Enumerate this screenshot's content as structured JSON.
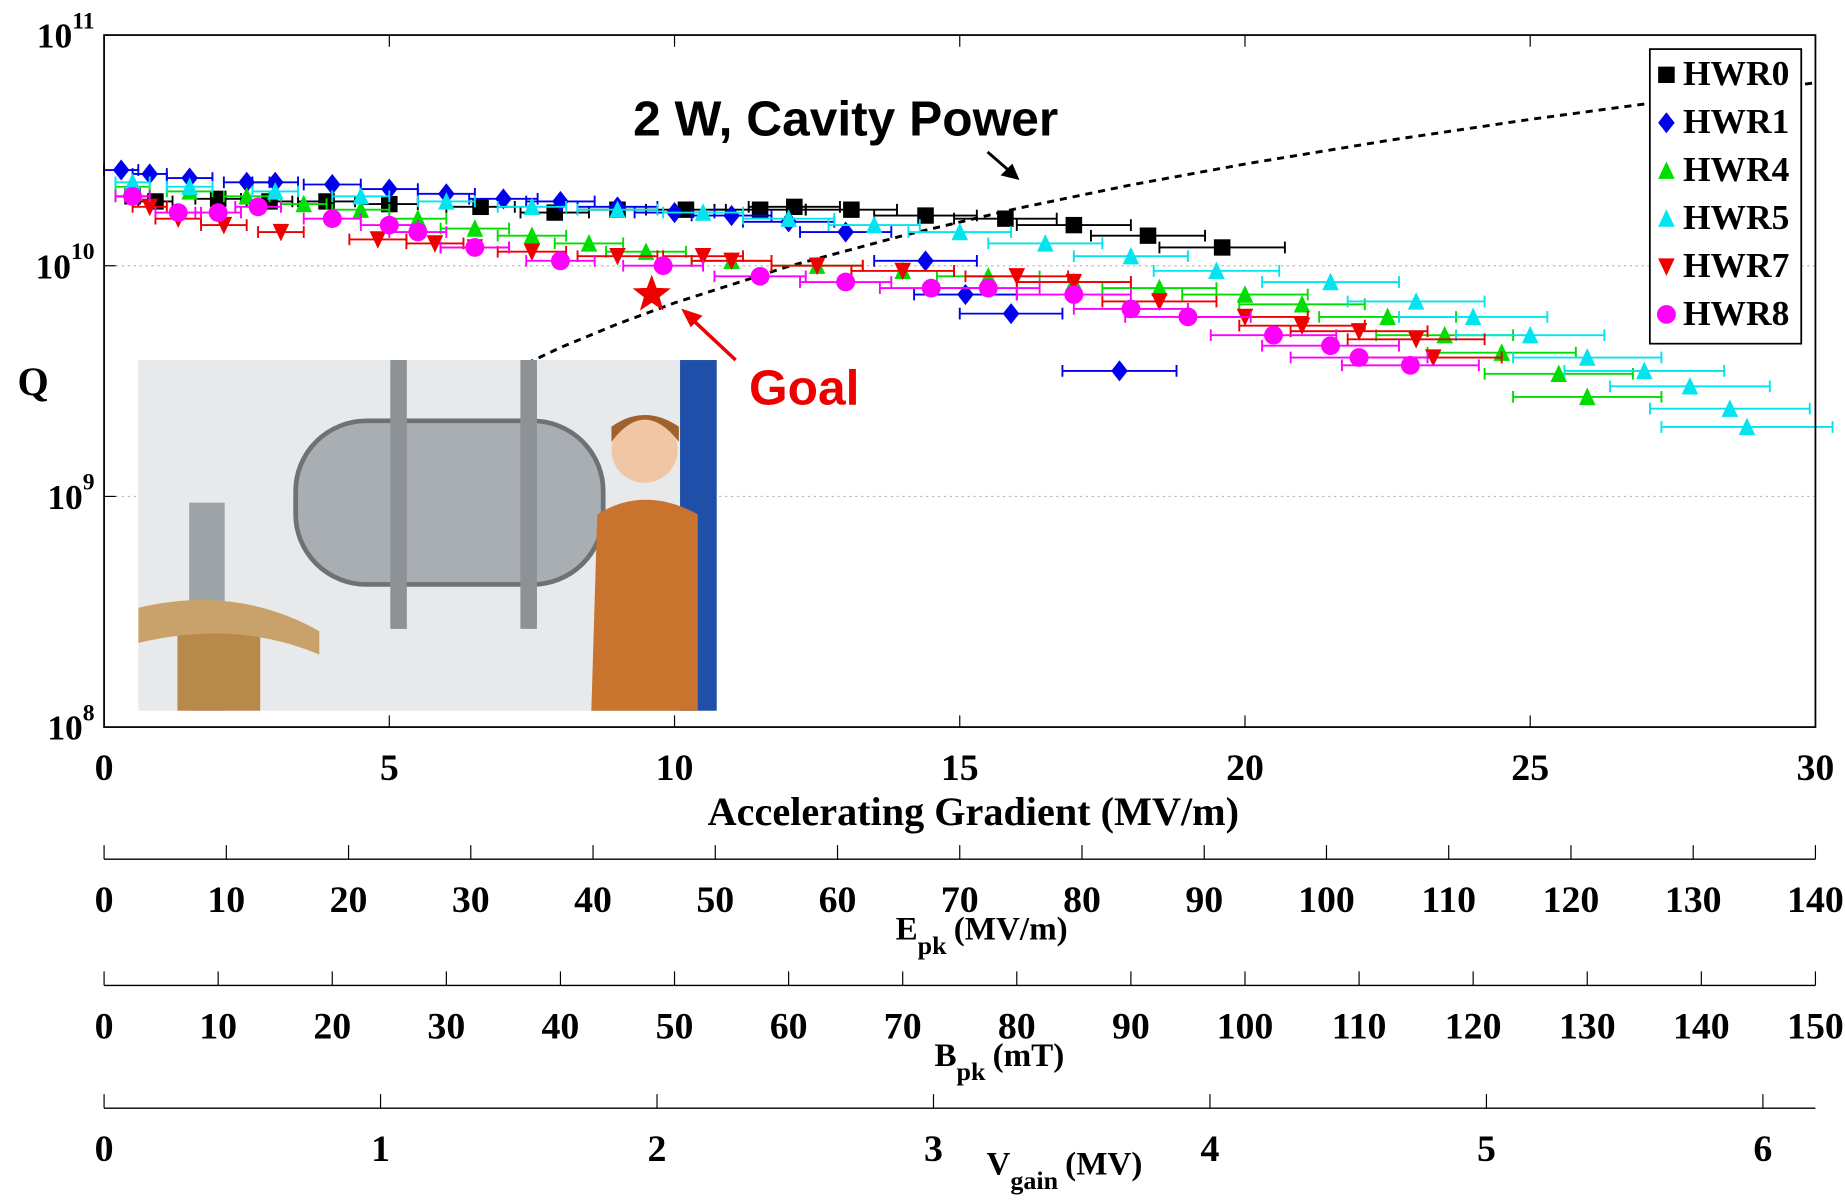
{
  "chart_data": {
    "type": "scatter",
    "y_label": "Q",
    "x_label": "Accelerating Gradient (MV/m)",
    "log_y": true,
    "grid": true,
    "legend": "upper right",
    "xlim": [
      0,
      30
    ],
    "xticks": [
      0,
      5,
      10,
      15,
      20,
      25,
      30
    ],
    "ylim": [
      100000000.0,
      100000000000.0
    ],
    "yticks": [
      {
        "value": 100000000.0,
        "label": "10",
        "exponent": "8"
      },
      {
        "value": 1000000000.0,
        "label": "10",
        "exponent": "9"
      },
      {
        "value": 10000000000.0,
        "label": "10",
        "exponent": "10"
      },
      {
        "value": 100000000000.0,
        "label": "10",
        "exponent": "11"
      }
    ],
    "series": [
      {
        "name": "HWR0",
        "color": "#000000",
        "marker": "square",
        "x": [
          0.5,
          0.9,
          2.0,
          2.9,
          3.9,
          5.0,
          6.6,
          7.9,
          9.0,
          10.2,
          11.5,
          12.1,
          13.1,
          14.4,
          15.8,
          17.0,
          18.3,
          19.6
        ],
        "xerr": [
          0.3,
          0.3,
          0.4,
          0.4,
          0.5,
          0.5,
          0.6,
          0.6,
          0.7,
          0.7,
          0.8,
          0.8,
          0.8,
          0.9,
          0.9,
          1.0,
          1.0,
          1.1
        ],
        "values": [
          20000000000.0,
          19000000000.0,
          19500000000.0,
          19000000000.0,
          19000000000.0,
          18500000000.0,
          18000000000.0,
          17000000000.0,
          17500000000.0,
          17500000000.0,
          17500000000.0,
          18000000000.0,
          17500000000.0,
          16500000000.0,
          16000000000.0,
          15000000000.0,
          13500000000.0,
          12000000000.0
        ]
      },
      {
        "name": "HWR1",
        "color": "#0000ee",
        "marker": "diamond",
        "x": [
          0.3,
          0.8,
          1.5,
          2.5,
          3.0,
          4.0,
          5.0,
          6.0,
          7.0,
          8.0,
          9.0,
          10.0,
          11.0,
          12.0,
          13.0,
          14.4,
          15.1,
          15.9,
          17.8
        ],
        "xerr": [
          0.3,
          0.3,
          0.4,
          0.4,
          0.4,
          0.5,
          0.5,
          0.5,
          0.6,
          0.6,
          0.7,
          0.7,
          0.7,
          0.8,
          0.8,
          0.9,
          0.9,
          0.9,
          1.0
        ],
        "values": [
          26000000000.0,
          25000000000.0,
          24000000000.0,
          23000000000.0,
          23000000000.0,
          22500000000.0,
          21500000000.0,
          20500000000.0,
          19500000000.0,
          19000000000.0,
          18000000000.0,
          17000000000.0,
          16500000000.0,
          15500000000.0,
          14000000000.0,
          10500000000.0,
          7500000000.0,
          6200000000.0,
          3500000000.0
        ]
      },
      {
        "name": "HWR4",
        "color": "#00dd00",
        "marker": "triangle-up",
        "x": [
          0.5,
          1.5,
          2.5,
          3.5,
          4.5,
          5.5,
          6.5,
          7.5,
          8.5,
          9.5,
          11,
          12.5,
          14,
          15.5,
          17,
          18.5,
          20,
          21,
          22.5,
          23.5,
          24.5,
          25.5,
          26
        ],
        "xerr": [
          0.3,
          0.4,
          0.4,
          0.4,
          0.5,
          0.5,
          0.6,
          0.6,
          0.6,
          0.7,
          0.7,
          0.8,
          0.9,
          0.9,
          1.0,
          1.0,
          1.1,
          1.1,
          1.2,
          1.2,
          1.3,
          1.3,
          1.3
        ],
        "values": [
          22000000000.0,
          21000000000.0,
          20000000000.0,
          18500000000.0,
          17500000000.0,
          16000000000.0,
          14500000000.0,
          13500000000.0,
          12500000000.0,
          11500000000.0,
          10500000000.0,
          10000000000.0,
          9500000000.0,
          9000000000.0,
          8500000000.0,
          8000000000.0,
          7500000000.0,
          6800000000.0,
          6000000000.0,
          5000000000.0,
          4200000000.0,
          3400000000.0,
          2700000000.0
        ]
      },
      {
        "name": "HWR5",
        "color": "#00e5ee",
        "marker": "triangle-up",
        "x": [
          0.5,
          1.5,
          3,
          4.5,
          6,
          7.5,
          9,
          10.5,
          12,
          13.5,
          15,
          16.5,
          18,
          19.5,
          21.5,
          23,
          24,
          25,
          26,
          27,
          27.8,
          28.5,
          28.8
        ],
        "xerr": [
          0.3,
          0.4,
          0.4,
          0.5,
          0.5,
          0.6,
          0.7,
          0.7,
          0.8,
          0.8,
          0.9,
          1.0,
          1.0,
          1.1,
          1.2,
          1.2,
          1.3,
          1.3,
          1.3,
          1.4,
          1.4,
          1.4,
          1.5
        ],
        "values": [
          23000000000.0,
          22000000000.0,
          21000000000.0,
          20000000000.0,
          19000000000.0,
          18000000000.0,
          17500000000.0,
          17000000000.0,
          16000000000.0,
          15000000000.0,
          14000000000.0,
          12500000000.0,
          11000000000.0,
          9500000000.0,
          8500000000.0,
          7000000000.0,
          6000000000.0,
          5000000000.0,
          4000000000.0,
          3500000000.0,
          3000000000.0,
          2400000000.0,
          2000000000.0
        ]
      },
      {
        "name": "HWR7",
        "color": "#ee0000",
        "marker": "triangle-down",
        "x": [
          0.8,
          1.3,
          2.1,
          3.1,
          4.8,
          5.8,
          6.5,
          7.5,
          9,
          10.5,
          11,
          12.5,
          14,
          16,
          17,
          18.5,
          20,
          21,
          22,
          23,
          23.3
        ],
        "xerr": [
          0.3,
          0.4,
          0.4,
          0.4,
          0.5,
          0.5,
          0.6,
          0.6,
          0.7,
          0.7,
          0.7,
          0.8,
          0.9,
          0.9,
          1.0,
          1.0,
          1.1,
          1.1,
          1.2,
          1.2,
          1.2
        ],
        "values": [
          18000000000.0,
          16000000000.0,
          15000000000.0,
          14000000000.0,
          13000000000.0,
          12500000000.0,
          12000000000.0,
          11500000000.0,
          11000000000.0,
          11000000000.0,
          10500000000.0,
          10000000000.0,
          9500000000.0,
          9000000000.0,
          8500000000.0,
          7000000000.0,
          6000000000.0,
          5500000000.0,
          5200000000.0,
          4800000000.0,
          4000000000.0
        ]
      },
      {
        "name": "HWR8",
        "color": "#ff00ff",
        "marker": "circle",
        "x": [
          0.5,
          1.3,
          2,
          2.7,
          4,
          5,
          5.5,
          6.5,
          8,
          9.8,
          11.5,
          13,
          14.5,
          15.5,
          17,
          18,
          19,
          20.5,
          21.5,
          22,
          22.9
        ],
        "xerr": [
          0.3,
          0.4,
          0.4,
          0.4,
          0.5,
          0.5,
          0.5,
          0.6,
          0.6,
          0.7,
          0.8,
          0.8,
          0.9,
          0.9,
          1.0,
          1.0,
          1.1,
          1.1,
          1.2,
          1.2,
          1.2
        ],
        "values": [
          20000000000.0,
          17000000000.0,
          17000000000.0,
          18000000000.0,
          16000000000.0,
          15000000000.0,
          14000000000.0,
          12000000000.0,
          10500000000.0,
          10000000000.0,
          9000000000.0,
          8500000000.0,
          8000000000.0,
          8000000000.0,
          7500000000.0,
          6500000000.0,
          6000000000.0,
          5000000000.0,
          4500000000.0,
          4000000000.0,
          3700000000.0
        ]
      }
    ],
    "power_curve": {
      "label": "2 W, Cavity Power",
      "color": "#000000",
      "x": [
        7,
        8,
        9,
        10,
        12,
        14,
        16,
        18,
        20,
        22.5,
        25,
        27.5,
        30
      ],
      "values": [
        3380000000.0,
        4420000000.0,
        5590000000.0,
        6900000000.0,
        9940000000.0,
        13500000000.0,
        17700000000.0,
        22400000000.0,
        27600000000.0,
        34900000000.0,
        43100000000.0,
        52200000000.0,
        62100000000.0
      ]
    },
    "goal": {
      "label": "Goal",
      "color": "#ee0000",
      "x": 9.6,
      "value": 7500000000.0
    },
    "secondary_axes": [
      {
        "symbol": "E",
        "subscript": "pk",
        "unit": "(MV/m)",
        "lim": [
          0,
          140
        ],
        "ticks": [
          0,
          10,
          20,
          30,
          40,
          50,
          60,
          70,
          80,
          90,
          100,
          110,
          120,
          130,
          140
        ]
      },
      {
        "symbol": "B",
        "subscript": "pk",
        "unit": "(mT)",
        "lim": [
          0,
          150
        ],
        "ticks": [
          0,
          10,
          20,
          30,
          40,
          50,
          60,
          70,
          80,
          90,
          100,
          110,
          120,
          130,
          140,
          150
        ]
      },
      {
        "symbol": "V",
        "subscript": "gain",
        "unit": "(MV)",
        "lim": [
          0,
          6.19
        ],
        "ticks": [
          0,
          1,
          2,
          3,
          4,
          5,
          6
        ]
      }
    ]
  }
}
